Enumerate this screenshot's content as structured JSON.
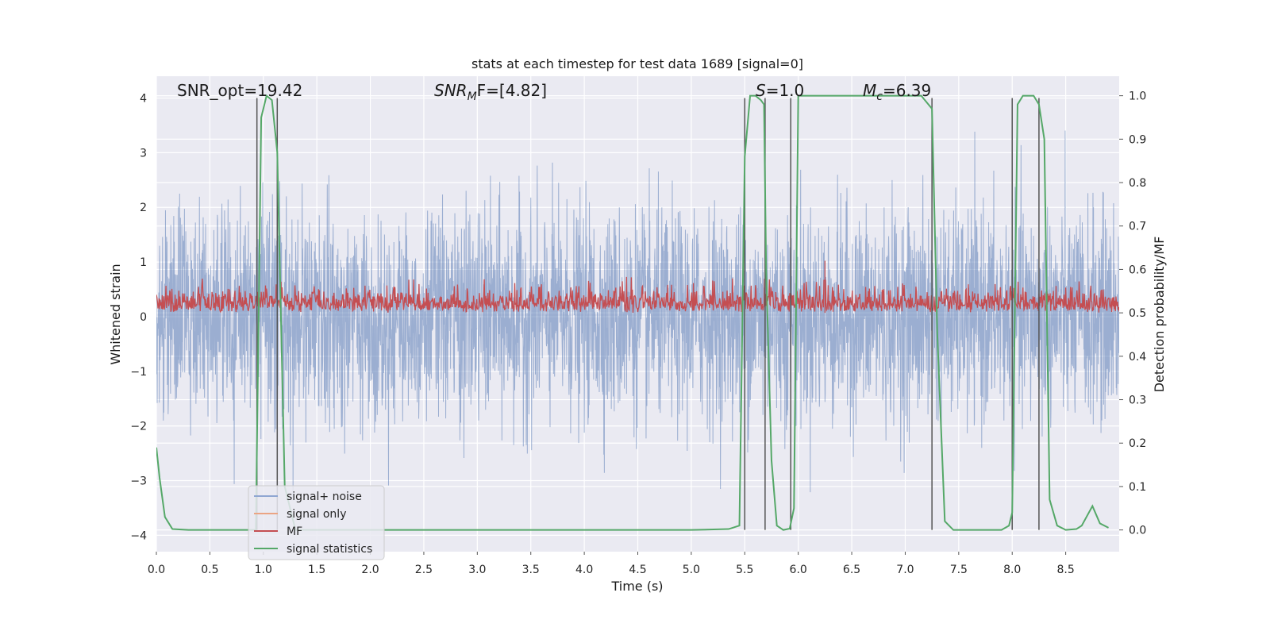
{
  "chart_data": {
    "type": "line",
    "title": "stats at each timestep for test data 1689 [signal=0]",
    "xlabel": "Time (s)",
    "ylabel_left": "Whitened strain",
    "ylabel_right": "Detection probability/MF",
    "xlim": [
      0.0,
      9.0
    ],
    "ylim_left": [
      -4.3,
      4.4
    ],
    "ylim_right": [
      -0.05,
      1.045
    ],
    "xticks": [
      0.0,
      0.5,
      1.0,
      1.5,
      2.0,
      2.5,
      3.0,
      3.5,
      4.0,
      4.5,
      5.0,
      5.5,
      6.0,
      6.5,
      7.0,
      7.5,
      8.0,
      8.5
    ],
    "xtick_labels": [
      "0.0",
      "0.5",
      "1.0",
      "1.5",
      "2.0",
      "2.5",
      "3.0",
      "3.5",
      "4.0",
      "4.5",
      "5.0",
      "5.5",
      "6.0",
      "6.5",
      "7.0",
      "7.5",
      "8.0",
      "8.5"
    ],
    "yticks_left": [
      -4,
      -3,
      -2,
      -1,
      0,
      1,
      2,
      3,
      4
    ],
    "ytick_labels_left": [
      "−4",
      "−3",
      "−2",
      "−1",
      "0",
      "1",
      "2",
      "3",
      "4"
    ],
    "yticks_right": [
      0.0,
      0.1,
      0.2,
      0.3,
      0.4,
      0.5,
      0.6,
      0.7,
      0.8,
      0.9,
      1.0
    ],
    "ytick_labels_right": [
      "0.0",
      "0.1",
      "0.2",
      "0.3",
      "0.4",
      "0.5",
      "0.6",
      "0.7",
      "0.8",
      "0.9",
      "1.0"
    ],
    "grid": true,
    "annotations": {
      "snr_opt": "SNR_opt=19.42",
      "snr_mf_base": "SNR",
      "snr_mf_sub": "M",
      "snr_mf_rest": "F=[4.82]",
      "s_stat_sym": "S",
      "s_stat_rest": "=1.0",
      "mc_sym": "M",
      "mc_sub": "c",
      "mc_rest": "=6.39"
    },
    "legend": {
      "location": "lower-left",
      "entries": [
        {
          "label": "signal+ noise",
          "color": "#8fa6d2"
        },
        {
          "label": "signal only",
          "color": "#eba483"
        },
        {
          "label": "MF",
          "color": "#c44e52"
        },
        {
          "label": "signal statistics",
          "color": "#55a868"
        }
      ]
    },
    "vertical_markers": [
      0.94,
      1.13,
      5.5,
      5.69,
      5.93,
      7.25,
      8.0,
      8.25
    ],
    "series": [
      {
        "name": "signal+ noise",
        "axis": "left",
        "description": "whitened noisy strain, roughly Gaussian, amplitude within about -3.6..3.5",
        "style": "dense"
      },
      {
        "name": "signal only",
        "axis": "left",
        "values": []
      },
      {
        "name": "MF",
        "axis": "right",
        "description": "matched filter output fluctuating around 0.51-0.54, peak ~0.62 at t=6.25",
        "style": "dense"
      },
      {
        "name": "signal statistics",
        "axis": "right",
        "x": [
          0.0,
          0.03,
          0.08,
          0.15,
          0.3,
          0.6,
          0.9,
          0.93,
          0.98,
          1.03,
          1.08,
          1.13,
          1.2,
          1.3,
          2.0,
          3.0,
          4.0,
          5.0,
          5.35,
          5.45,
          5.5,
          5.55,
          5.6,
          5.65,
          5.68,
          5.7,
          5.75,
          5.8,
          5.86,
          5.92,
          5.96,
          6.0,
          6.05,
          6.2,
          6.5,
          7.0,
          7.15,
          7.25,
          7.3,
          7.37,
          7.45,
          7.6,
          7.9,
          7.97,
          8.0,
          8.05,
          8.1,
          8.2,
          8.25,
          8.3,
          8.35,
          8.42,
          8.5,
          8.6,
          8.65,
          8.75,
          8.82,
          8.9
        ],
        "y": [
          0.19,
          0.12,
          0.03,
          0.002,
          0.0,
          0.0,
          0.0,
          0.0,
          0.95,
          1.0,
          0.99,
          0.87,
          0.1,
          0.0,
          0.0,
          0.0,
          0.0,
          0.0,
          0.002,
          0.01,
          0.86,
          1.0,
          1.0,
          0.99,
          0.98,
          0.6,
          0.16,
          0.01,
          0.0,
          0.003,
          0.05,
          1.0,
          1.0,
          1.0,
          1.0,
          1.0,
          1.0,
          0.97,
          0.45,
          0.02,
          0.0,
          0.0,
          0.0,
          0.01,
          0.04,
          0.98,
          1.0,
          1.0,
          0.98,
          0.9,
          0.07,
          0.01,
          0.0,
          0.002,
          0.01,
          0.055,
          0.015,
          0.005
        ]
      }
    ]
  }
}
